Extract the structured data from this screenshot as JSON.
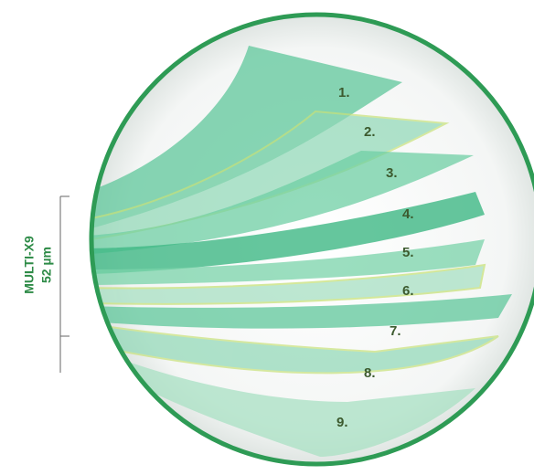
{
  "diagram": {
    "side_label": {
      "name": "MULTI-X9",
      "thickness": "52 µm"
    },
    "layers": [
      "1.",
      "2.",
      "3.",
      "4.",
      "5.",
      "6.",
      "7.",
      "8.",
      "9."
    ]
  }
}
